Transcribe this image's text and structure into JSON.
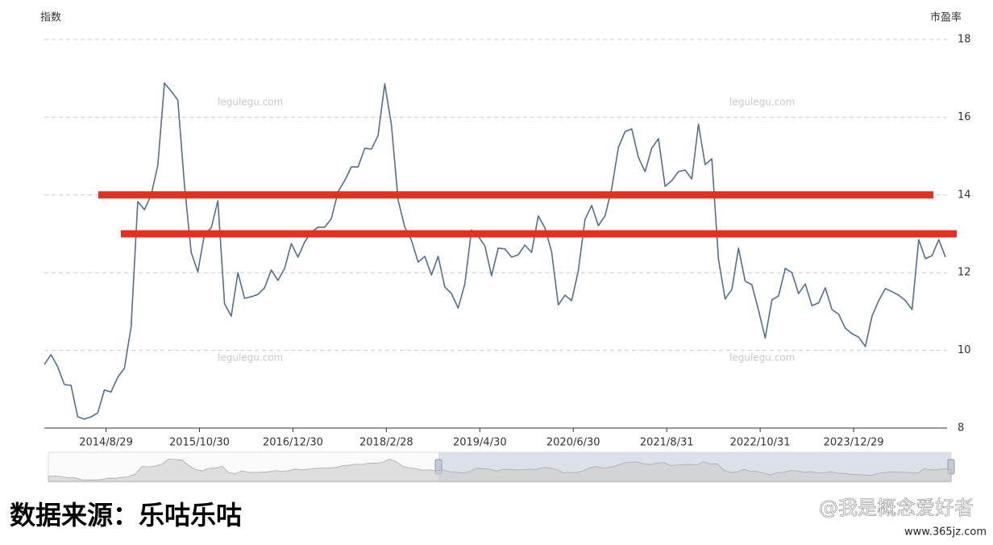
{
  "chart_data": {
    "type": "line",
    "y_axis_name": "指数",
    "y2_axis_name": "市盈率",
    "categories": [
      null,
      null,
      null,
      null,
      null,
      null,
      null,
      null,
      null,
      "2014/8/29",
      null,
      null,
      null,
      null,
      null,
      null,
      null,
      null,
      null,
      null,
      null,
      null,
      null,
      "2015/10/30",
      null,
      null,
      null,
      null,
      null,
      null,
      null,
      null,
      null,
      null,
      null,
      null,
      null,
      "2016/12/30",
      null,
      null,
      null,
      null,
      null,
      null,
      null,
      null,
      null,
      null,
      null,
      null,
      null,
      "2018/2/28",
      null,
      null,
      null,
      null,
      null,
      null,
      null,
      null,
      null,
      null,
      null,
      null,
      null,
      "2019/4/30",
      null,
      null,
      null,
      null,
      null,
      null,
      null,
      null,
      null,
      null,
      null,
      null,
      null,
      "2020/6/30",
      null,
      null,
      null,
      null,
      null,
      null,
      null,
      null,
      null,
      null,
      null,
      null,
      null,
      "2021/8/31",
      null,
      null,
      null,
      null,
      null,
      null,
      null,
      null,
      null,
      null,
      null,
      null,
      null,
      "2022/10/31",
      null,
      null,
      null,
      null,
      null,
      null,
      null,
      null,
      null,
      null,
      null,
      null,
      null,
      "2023/12/29",
      null,
      null,
      null,
      null,
      null,
      null,
      null,
      null,
      null,
      null,
      null,
      null,
      null,
      null
    ],
    "values": [
      9.64,
      9.89,
      9.58,
      9.12,
      9.1,
      8.29,
      8.23,
      8.29,
      8.39,
      8.98,
      8.93,
      9.31,
      9.54,
      10.61,
      13.83,
      13.62,
      14.0,
      14.76,
      16.88,
      16.67,
      16.44,
      14.24,
      12.52,
      12.02,
      13.0,
      13.15,
      13.85,
      11.2,
      10.88,
      12.0,
      11.34,
      11.38,
      11.44,
      11.61,
      12.07,
      11.8,
      12.11,
      12.75,
      12.4,
      12.79,
      13.04,
      13.17,
      13.17,
      13.39,
      14.08,
      14.37,
      14.72,
      14.72,
      15.2,
      15.18,
      15.53,
      16.86,
      15.8,
      13.87,
      13.17,
      12.83,
      12.27,
      12.42,
      11.94,
      12.42,
      11.63,
      11.46,
      11.09,
      11.71,
      13.1,
      12.94,
      12.69,
      11.92,
      12.63,
      12.61,
      12.4,
      12.46,
      12.71,
      12.52,
      13.46,
      13.15,
      12.54,
      11.17,
      11.42,
      11.28,
      12.05,
      13.37,
      13.73,
      13.21,
      13.46,
      14.16,
      15.22,
      15.63,
      15.7,
      14.97,
      14.6,
      15.2,
      15.45,
      14.22,
      14.37,
      14.6,
      14.64,
      14.41,
      15.82,
      14.78,
      14.93,
      12.34,
      11.32,
      11.57,
      12.63,
      11.78,
      11.69,
      11.03,
      10.32,
      11.3,
      11.4,
      12.11,
      12.0,
      11.46,
      11.71,
      11.15,
      11.22,
      11.61,
      11.05,
      10.93,
      10.57,
      10.43,
      10.34,
      10.1,
      10.88,
      11.28,
      11.59,
      11.51,
      11.42,
      11.28,
      11.05,
      12.85,
      12.36,
      12.44,
      12.85,
      12.4
    ],
    "color": "#4f6f96",
    "ylim": [
      8,
      18
    ],
    "yticks": [
      8,
      10,
      12,
      14,
      16,
      18
    ],
    "grid": true,
    "reference_lines": [
      {
        "value": 14,
        "color": "#e4301f"
      },
      {
        "value": 13,
        "color": "#e4301f"
      }
    ],
    "watermark": "legulegu.com"
  },
  "caption": "数据来源：乐咕乐咕",
  "credit": "@我是概念爱好者",
  "site": "www.365jz.com"
}
